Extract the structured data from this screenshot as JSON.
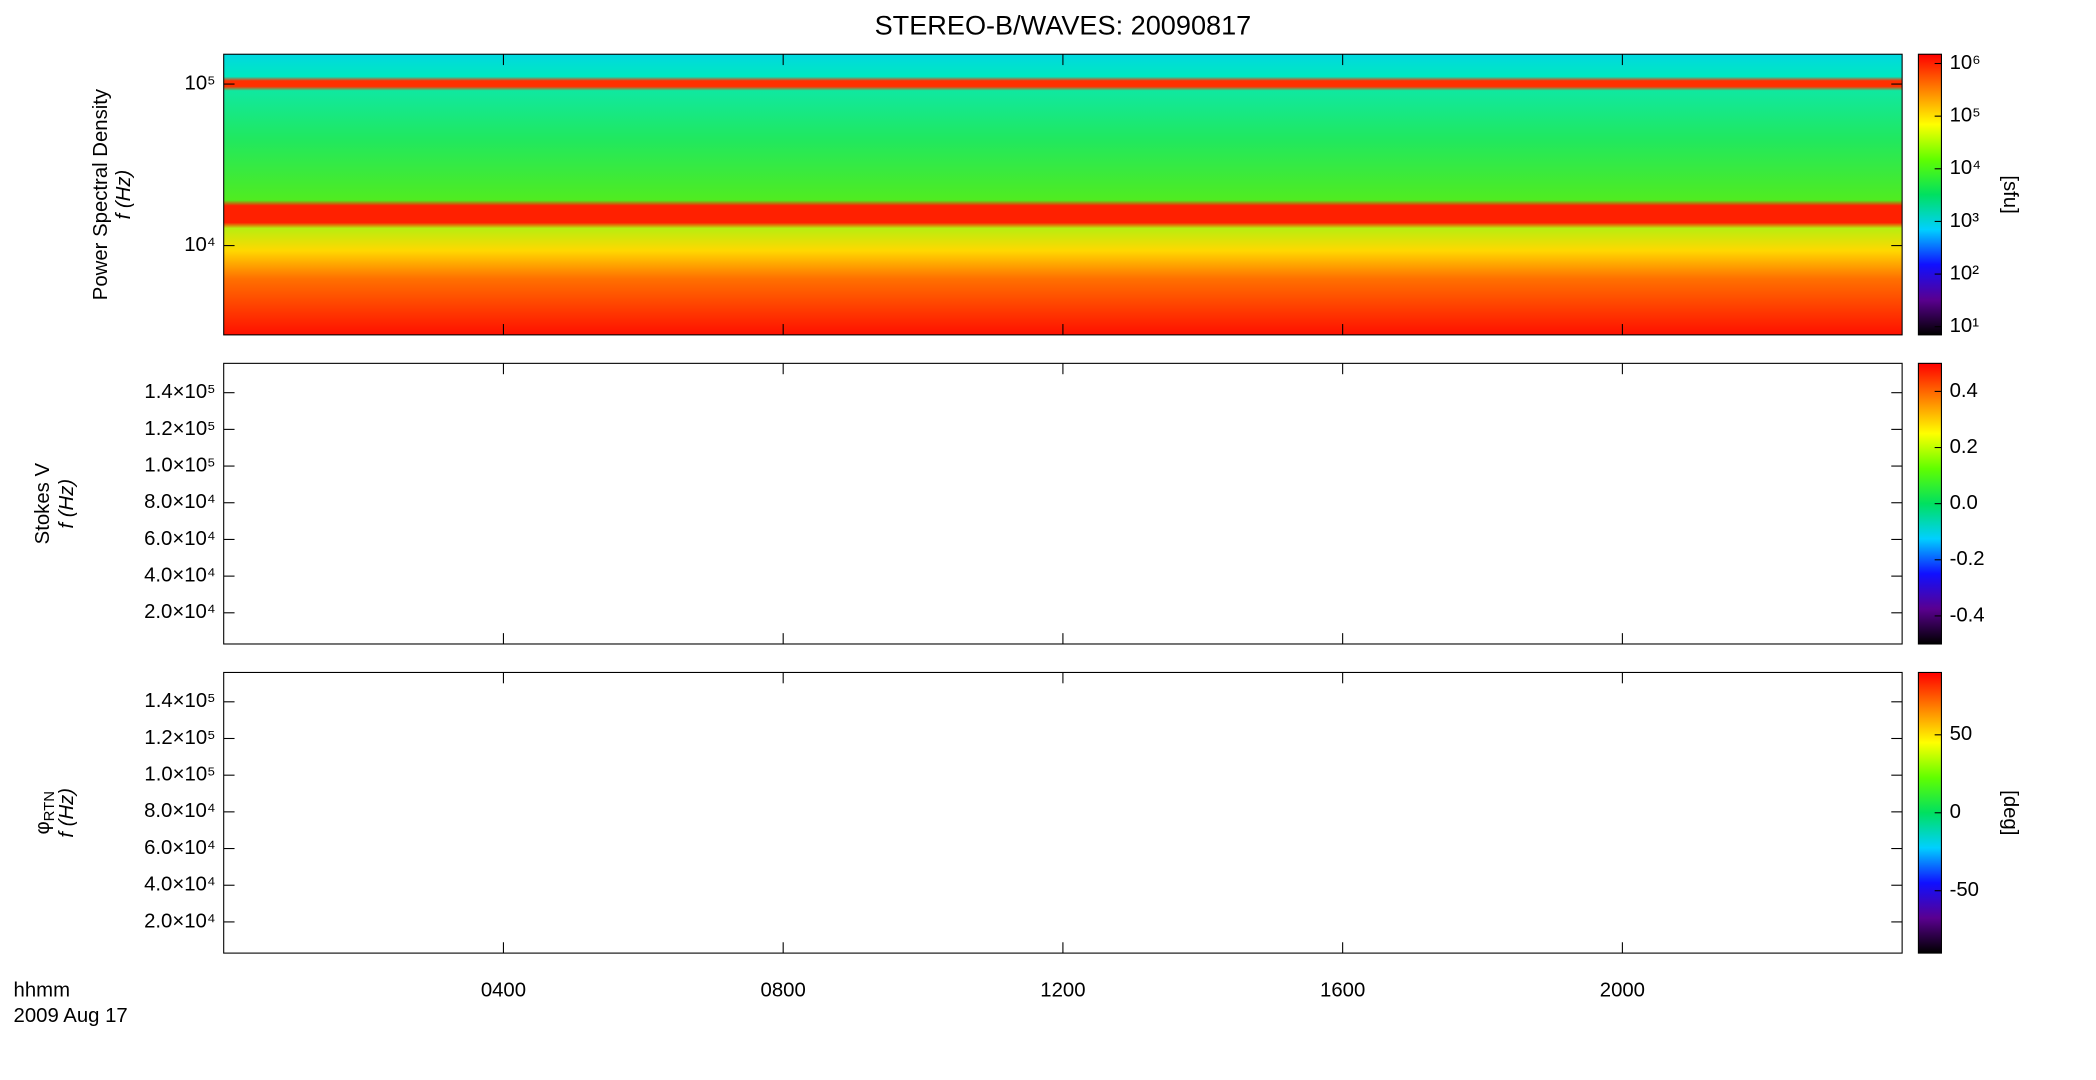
{
  "chart_data": [
    {
      "type": "spectrogram",
      "title": "STEREO-B/WAVES: 20090817",
      "ylabel": "Power Spectral Density",
      "ylabel2": "f (Hz)",
      "ylog": true,
      "ylim": [
        2800,
        153000
      ],
      "yticks": [
        {
          "value": 10000,
          "label": "10⁴"
        },
        {
          "value": 100000,
          "label": "10⁵"
        }
      ],
      "xlim": [
        0,
        2400
      ],
      "xticks": [
        {
          "value": 400,
          "label": "0400"
        },
        {
          "value": 800,
          "label": "0800"
        },
        {
          "value": 1200,
          "label": "1200"
        },
        {
          "value": 1600,
          "label": "1600"
        },
        {
          "value": 2000,
          "label": "2000"
        }
      ],
      "colorbar": {
        "label": "[sfu]",
        "log": true,
        "lim": [
          7,
          1500000
        ],
        "ticks": [
          {
            "value": 10,
            "label": "10¹"
          },
          {
            "value": 100,
            "label": "10²"
          },
          {
            "value": 1000,
            "label": "10³"
          },
          {
            "value": 10000,
            "label": "10⁴"
          },
          {
            "value": 100000,
            "label": "10⁵"
          },
          {
            "value": 1000000,
            "label": "10⁶"
          }
        ],
        "colormap": [
          "#000000",
          "#5a0090",
          "#1010ff",
          "#00d0ff",
          "#00e060",
          "#60ff00",
          "#ffff00",
          "#ff8000",
          "#ff0000"
        ]
      }
    },
    {
      "type": "spectrogram",
      "ylabel": "Stokes V",
      "ylabel2": "f (Hz)",
      "ylog": false,
      "ylim": [
        3000,
        156000
      ],
      "yticks": [
        {
          "value": 20000,
          "label": "2.0×10⁴"
        },
        {
          "value": 40000,
          "label": "4.0×10⁴"
        },
        {
          "value": 60000,
          "label": "6.0×10⁴"
        },
        {
          "value": 80000,
          "label": "8.0×10⁴"
        },
        {
          "value": 100000,
          "label": "1.0×10⁵"
        },
        {
          "value": 120000,
          "label": "1.2×10⁵"
        },
        {
          "value": 140000,
          "label": "1.4×10⁵"
        }
      ],
      "xlim": [
        0,
        2400
      ],
      "xticks": [
        {
          "value": 400,
          "label": "0400"
        },
        {
          "value": 800,
          "label": "0800"
        },
        {
          "value": 1200,
          "label": "1200"
        },
        {
          "value": 1600,
          "label": "1600"
        },
        {
          "value": 2000,
          "label": "2000"
        }
      ],
      "colorbar": {
        "log": false,
        "lim": [
          -0.5,
          0.5
        ],
        "ticks": [
          -0.4,
          -0.2,
          {
            "value": 0,
            "label": "0.0"
          },
          0.2,
          0.4
        ],
        "colormap": [
          "#000000",
          "#5a0090",
          "#1010ff",
          "#00d0ff",
          "#00e060",
          "#60ff00",
          "#ffff00",
          "#ff8000",
          "#ff0000"
        ]
      }
    },
    {
      "type": "spectrogram",
      "ylabel": "φ",
      "ylabel_sub": "RTN",
      "ylabel2": "f (Hz)",
      "ylog": false,
      "ylim": [
        3000,
        156000
      ],
      "yticks": [
        {
          "value": 20000,
          "label": "2.0×10⁴"
        },
        {
          "value": 40000,
          "label": "4.0×10⁴"
        },
        {
          "value": 60000,
          "label": "6.0×10⁴"
        },
        {
          "value": 80000,
          "label": "8.0×10⁴"
        },
        {
          "value": 100000,
          "label": "1.0×10⁵"
        },
        {
          "value": 120000,
          "label": "1.2×10⁵"
        },
        {
          "value": 140000,
          "label": "1.4×10⁵"
        }
      ],
      "xlim": [
        0,
        2400
      ],
      "xticks": [
        {
          "value": 400,
          "label": "0400"
        },
        {
          "value": 800,
          "label": "0800"
        },
        {
          "value": 1200,
          "label": "1200"
        },
        {
          "value": 1600,
          "label": "1600"
        },
        {
          "value": 2000,
          "label": "2000"
        }
      ],
      "xlabel": "hhmm",
      "date": "2009 Aug 17",
      "colorbar": {
        "label": "[deg]",
        "log": false,
        "lim": [
          -90,
          90
        ],
        "ticks": [
          -50,
          0,
          50
        ],
        "colormap": [
          "#000000",
          "#5a0090",
          "#1010ff",
          "#00d0ff",
          "#00e060",
          "#60ff00",
          "#ffff00",
          "#ff8000",
          "#ff0000"
        ]
      }
    }
  ]
}
